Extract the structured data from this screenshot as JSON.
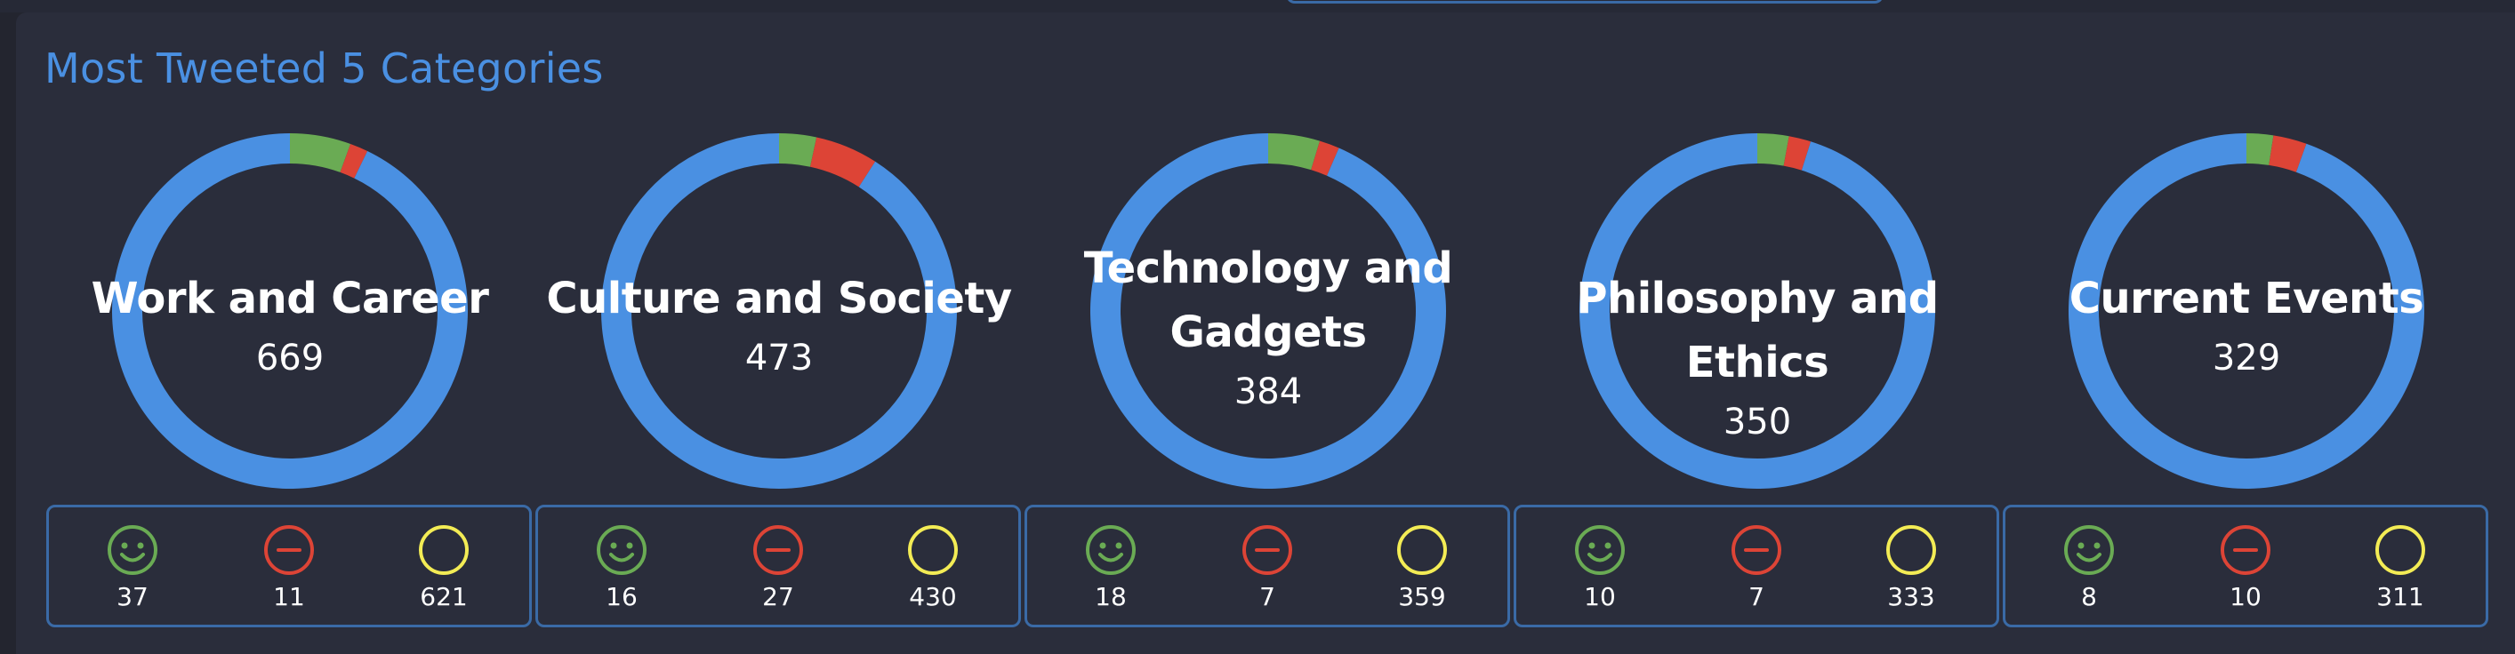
{
  "panel": {
    "title": "Most Tweeted 5 Categories"
  },
  "colors": {
    "neutral": "#4a90e2",
    "positive": "#6aab54",
    "negative": "#dd4436",
    "neutral_icon": "#f3ec55"
  },
  "icons": {
    "positive": "smiley-icon",
    "negative": "minus-circle-icon",
    "neutral": "empty-circle-icon"
  },
  "chart_data": [
    {
      "type": "pie",
      "title": "Work and Career",
      "total": "669",
      "series": [
        {
          "name": "positive",
          "value": 37
        },
        {
          "name": "negative",
          "value": 11
        },
        {
          "name": "neutral",
          "value": 621
        }
      ],
      "counts": {
        "positive": "37",
        "negative": "11",
        "neutral": "621"
      }
    },
    {
      "type": "pie",
      "title": "Culture and Society",
      "total": "473",
      "series": [
        {
          "name": "positive",
          "value": 16
        },
        {
          "name": "negative",
          "value": 27
        },
        {
          "name": "neutral",
          "value": 430
        }
      ],
      "counts": {
        "positive": "16",
        "negative": "27",
        "neutral": "430"
      }
    },
    {
      "type": "pie",
      "title": "Technology and Gadgets",
      "title_lines": [
        "Technology and",
        "Gadgets"
      ],
      "total": "384",
      "series": [
        {
          "name": "positive",
          "value": 18
        },
        {
          "name": "negative",
          "value": 7
        },
        {
          "name": "neutral",
          "value": 359
        }
      ],
      "counts": {
        "positive": "18",
        "negative": "7",
        "neutral": "359"
      }
    },
    {
      "type": "pie",
      "title": "Philosophy and Ethics",
      "total": "350",
      "series": [
        {
          "name": "positive",
          "value": 10
        },
        {
          "name": "negative",
          "value": 7
        },
        {
          "name": "neutral",
          "value": 333
        }
      ],
      "counts": {
        "positive": "10",
        "negative": "7",
        "neutral": "333"
      }
    },
    {
      "type": "pie",
      "title": "Current Events",
      "total": "329",
      "series": [
        {
          "name": "positive",
          "value": 8
        },
        {
          "name": "negative",
          "value": 10
        },
        {
          "name": "neutral",
          "value": 311
        }
      ],
      "counts": {
        "positive": "8",
        "negative": "10",
        "neutral": "311"
      }
    }
  ]
}
